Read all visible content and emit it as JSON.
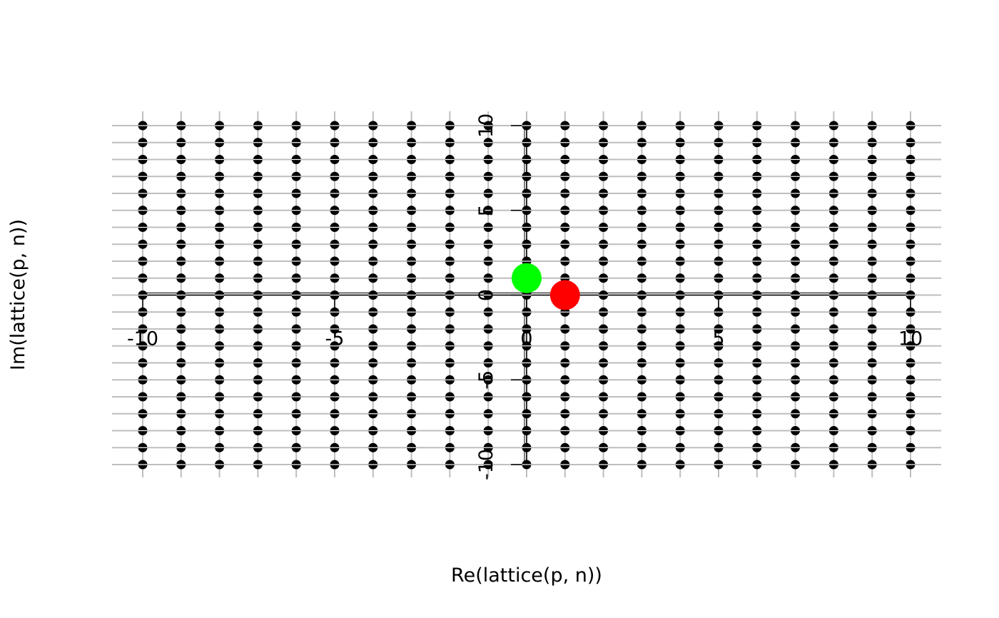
{
  "chart_data": {
    "type": "scatter",
    "title": "",
    "xlabel": "Re(lattice(p, n))",
    "ylabel": "Im(lattice(p, n))",
    "xlim": [
      -10,
      10
    ],
    "ylim": [
      -10,
      10
    ],
    "x_ticks": [
      "-10",
      "-5",
      "0",
      "5",
      "10"
    ],
    "y_ticks": [
      "-10",
      "-5",
      "0",
      "5",
      "10"
    ],
    "grid": true,
    "axes_through_origin": true,
    "series": [
      {
        "role": "lattice",
        "marker_color": "#000000",
        "x_range": [
          -10,
          10
        ],
        "y_range": [
          -10,
          10
        ],
        "step": 1
      },
      {
        "role": "highlight",
        "marker_color": "#00ff00",
        "points": [
          {
            "x": 0,
            "y": 1
          }
        ]
      },
      {
        "role": "highlight",
        "marker_color": "#ff0000",
        "points": [
          {
            "x": 1,
            "y": 0
          }
        ]
      }
    ]
  }
}
